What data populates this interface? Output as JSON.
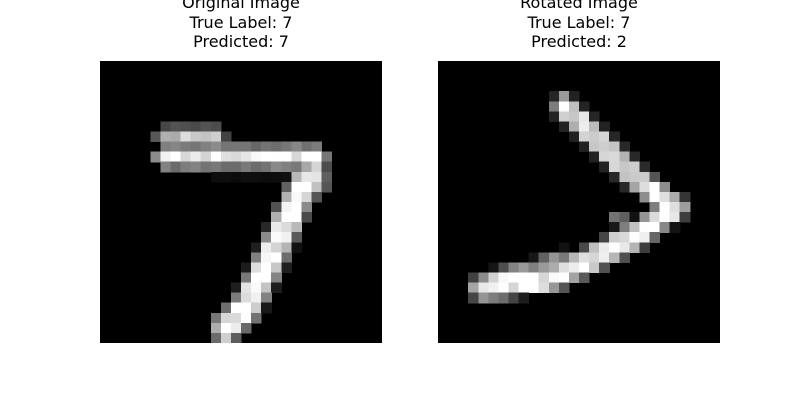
{
  "chart_data": [
    {
      "type": "heatmap",
      "title": "Original Image",
      "subtitle_lines": [
        "True Label: 7",
        "Predicted: 7"
      ],
      "true_label": "7",
      "predicted": "7",
      "colormap": "gray",
      "grid_size": [
        28,
        28
      ],
      "value_range": [
        0,
        1
      ],
      "axes_visible": false,
      "strokes": [
        {
          "points": [
            [
              6,
              7
            ],
            [
              11,
              7
            ]
          ],
          "width": 1.1,
          "intensity": 0.8
        },
        {
          "points": [
            [
              6,
              9
            ],
            [
              21,
              9
            ]
          ],
          "width": 1.2,
          "intensity": 1.0
        },
        {
          "points": [
            [
              11,
              10
            ],
            [
              19,
              10
            ]
          ],
          "width": 0.9,
          "intensity": 0.45
        },
        {
          "points": [
            [
              21,
              9
            ],
            [
              21,
              12
            ]
          ],
          "width": 1.1,
          "intensity": 0.9
        },
        {
          "points": [
            [
              20,
              11
            ],
            [
              17,
              18
            ],
            [
              14,
              24
            ],
            [
              12,
              26
            ]
          ],
          "width": 1.6,
          "intensity": 1.0
        }
      ]
    },
    {
      "type": "heatmap",
      "title": "Rotated Image",
      "subtitle_lines": [
        "True Label: 7",
        "Predicted: 2"
      ],
      "true_label": "7",
      "predicted": "2",
      "colormap": "gray",
      "grid_size": [
        28,
        28
      ],
      "value_range": [
        0,
        1
      ],
      "axes_visible": false,
      "strokes": [
        {
          "points": [
            [
              12,
              4
            ],
            [
              16,
              8
            ],
            [
              19,
              11
            ],
            [
              23,
              14
            ]
          ],
          "width": 1.3,
          "intensity": 0.95
        },
        {
          "points": [
            [
              23,
              14
            ],
            [
              19,
              17
            ],
            [
              15,
              19
            ],
            [
              11,
              21
            ],
            [
              4,
              22
            ]
          ],
          "width": 1.4,
          "intensity": 1.0
        },
        {
          "points": [
            [
              5,
              21
            ],
            [
              9,
              20
            ],
            [
              12,
              19
            ]
          ],
          "width": 0.9,
          "intensity": 0.55
        },
        {
          "points": [
            [
              17,
              15
            ],
            [
              20,
              17
            ]
          ],
          "width": 0.8,
          "intensity": 0.5
        }
      ]
    }
  ]
}
